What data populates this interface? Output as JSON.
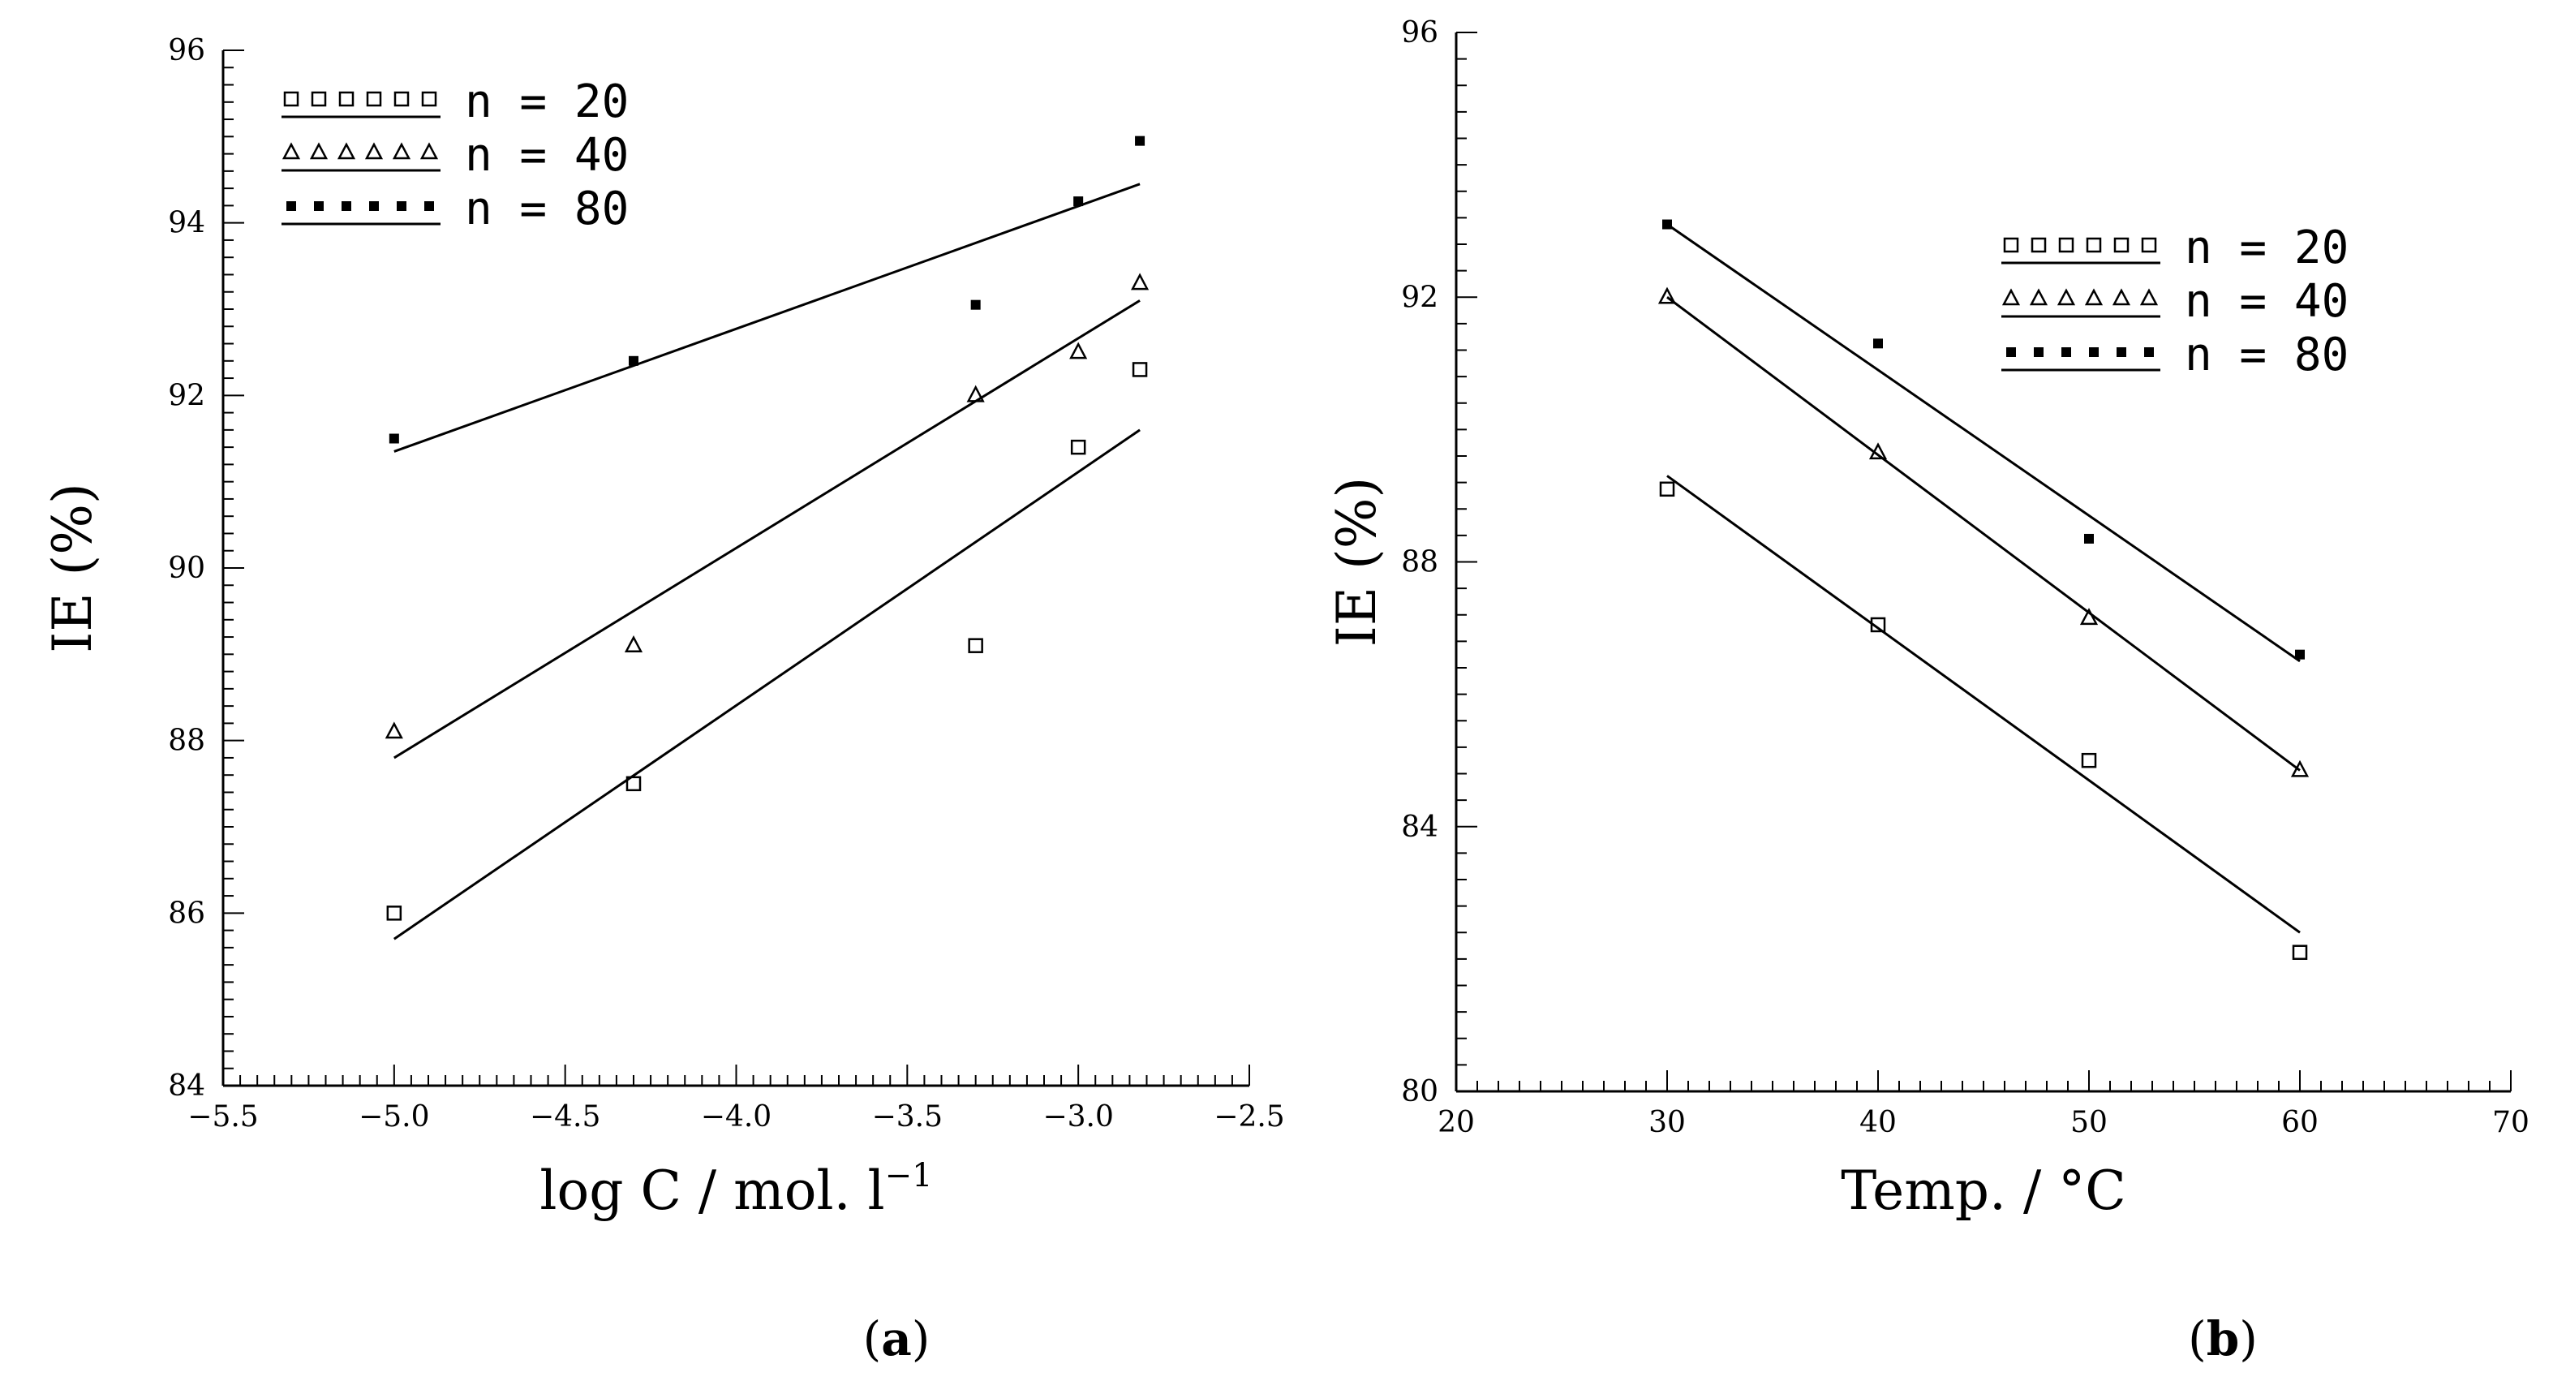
{
  "chart_data": [
    {
      "type": "scatter",
      "panel_label": "a",
      "xlabel": "log C / mol. l",
      "xlabel_sup": "−1",
      "ylabel": "IE (%)",
      "xlim": [
        -5.5,
        -2.5
      ],
      "ylim": [
        84,
        96
      ],
      "xticks": [
        -5.5,
        -5.0,
        -4.5,
        -4.0,
        -3.5,
        -3.0,
        -2.5
      ],
      "xtick_labels": [
        "−5.5",
        "−5.0",
        "−4.5",
        "−4.0",
        "−3.5",
        "−3.0",
        "−2.5"
      ],
      "yticks": [
        84,
        86,
        88,
        90,
        92,
        94,
        96
      ],
      "ytick_labels": [
        "84",
        "86",
        "88",
        "90",
        "92",
        "94",
        "96"
      ],
      "legend_position": "top-left",
      "series": [
        {
          "name": "n = 20",
          "marker": "square",
          "points": [
            [
              -5.0,
              86.0
            ],
            [
              -4.3,
              87.5
            ],
            [
              -3.3,
              89.1
            ],
            [
              -3.0,
              91.4
            ],
            [
              -2.82,
              92.3
            ]
          ],
          "fit": [
            [
              -5.0,
              85.7
            ],
            [
              -2.82,
              91.6
            ]
          ]
        },
        {
          "name": "n = 40",
          "marker": "triangle",
          "points": [
            [
              -5.0,
              88.1
            ],
            [
              -4.3,
              89.1
            ],
            [
              -3.3,
              92.0
            ],
            [
              -3.0,
              92.5
            ],
            [
              -2.82,
              93.3
            ]
          ],
          "fit": [
            [
              -5.0,
              87.8
            ],
            [
              -2.82,
              93.1
            ]
          ]
        },
        {
          "name": "n = 80",
          "marker": "dot",
          "points": [
            [
              -5.0,
              91.5
            ],
            [
              -4.3,
              92.4
            ],
            [
              -3.3,
              93.05
            ],
            [
              -3.0,
              94.25
            ],
            [
              -2.82,
              94.95
            ]
          ],
          "fit": [
            [
              -5.0,
              91.35
            ],
            [
              -2.82,
              94.45
            ]
          ]
        }
      ]
    },
    {
      "type": "scatter",
      "panel_label": "b",
      "xlabel": "Temp. / °C",
      "ylabel": "IE (%)",
      "xlim": [
        20,
        70
      ],
      "ylim": [
        80,
        96
      ],
      "xticks": [
        20,
        30,
        40,
        50,
        60,
        70
      ],
      "xtick_labels": [
        "20",
        "30",
        "40",
        "50",
        "60",
        "70"
      ],
      "yticks": [
        80,
        84,
        88,
        92,
        96
      ],
      "ytick_labels": [
        "80",
        "84",
        "88",
        "92",
        "96"
      ],
      "legend_position": "top-right",
      "series": [
        {
          "name": "n = 20",
          "marker": "square",
          "points": [
            [
              30,
              89.1
            ],
            [
              40,
              87.05
            ],
            [
              50,
              85.0
            ],
            [
              60,
              82.1
            ]
          ],
          "fit": [
            [
              30,
              89.3
            ],
            [
              60,
              82.4
            ]
          ]
        },
        {
          "name": "n = 40",
          "marker": "triangle",
          "points": [
            [
              30,
              92.0
            ],
            [
              40,
              89.65
            ],
            [
              50,
              87.15
            ],
            [
              60,
              84.85
            ]
          ],
          "fit": [
            [
              30,
              92.0
            ],
            [
              60,
              84.85
            ]
          ]
        },
        {
          "name": "n = 80",
          "marker": "dot",
          "points": [
            [
              30,
              93.1
            ],
            [
              40,
              91.3
            ],
            [
              50,
              88.35
            ],
            [
              60,
              86.6
            ]
          ],
          "fit": [
            [
              30,
              93.1
            ],
            [
              60,
              86.5
            ]
          ]
        }
      ]
    }
  ]
}
